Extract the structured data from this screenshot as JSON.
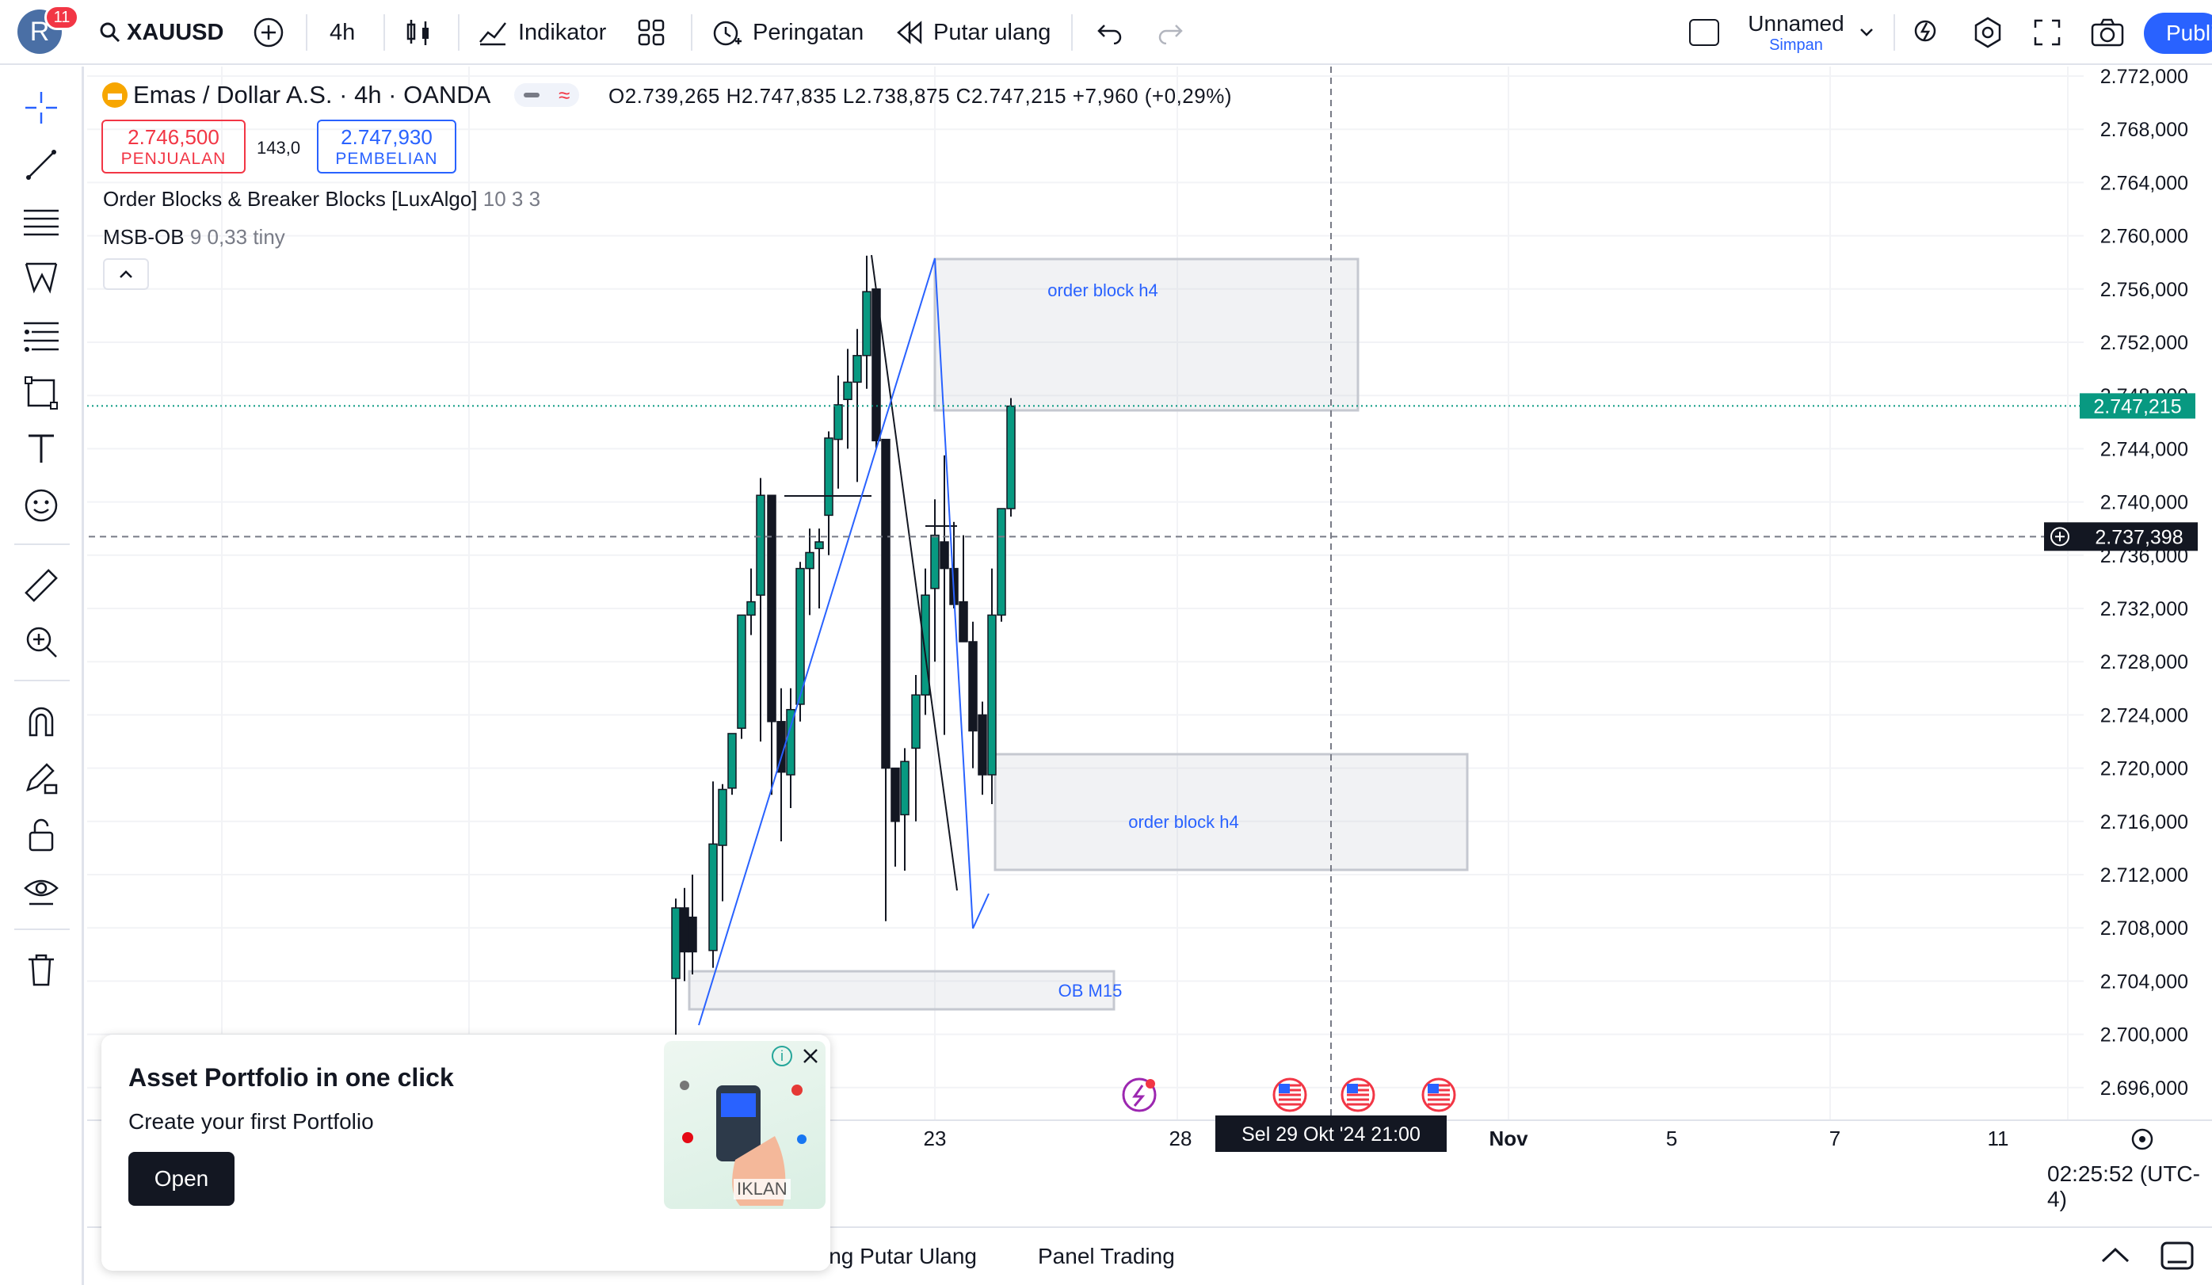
{
  "topbar": {
    "avatar_letter": "R",
    "notif_count": "11",
    "symbol": "XAUUSD",
    "interval": "4h",
    "indicators": "Indikator",
    "alerts": "Peringatan",
    "replay": "Putar ulang",
    "layout_name": "Unnamed",
    "layout_status": "Simpan",
    "publish": "Publi"
  },
  "legend": {
    "title": "Emas / Dollar A.S. · 4h · OANDA",
    "ohlc": "O2.739,265  H2.747,835  L2.738,875  C2.747,215  +7,960 (+0,29%)"
  },
  "sell": {
    "price": "2.746,500",
    "label": "PENJUALAN"
  },
  "spread": "143,0",
  "buy": {
    "price": "2.747,930",
    "label": "PEMBELIAN"
  },
  "indicators": [
    {
      "name": "Order Blocks & Breaker Blocks [LuxAlgo]",
      "params": "10 3 3"
    },
    {
      "name": "MSB-OB",
      "params": "9 0,33 tiny"
    }
  ],
  "price_axis": [
    "2.772,000",
    "2.768,000",
    "2.764,000",
    "2.760,000",
    "2.756,000",
    "2.752,000",
    "2.748,000",
    "2.744,000",
    "2.740,000",
    "2.736,000",
    "2.732,000",
    "2.728,000",
    "2.724,000",
    "2.720,000",
    "2.716,000",
    "2.712,000",
    "2.708,000",
    "2.704,000",
    "2.700,000",
    "2.696,000"
  ],
  "last_price": "2.747,215",
  "crosshair_price": "2.737,398",
  "time_axis": [
    "23",
    "28",
    "Nov",
    "5",
    "7",
    "11"
  ],
  "crosshair_time": "Sel 29 Okt '24   21:00",
  "zones": [
    {
      "label": "order block h4"
    },
    {
      "label": "order block h4"
    },
    {
      "label": "OB M15"
    }
  ],
  "clock": "02:25:52 (UTC-4)",
  "bottom_tabs": [
    "ing Putar Ulang",
    "Panel Trading"
  ],
  "ad": {
    "title": "Asset Portfolio in one click",
    "subtitle": "Create your first Portfolio",
    "button": "Open",
    "tag": "IKLAN"
  },
  "colors": {
    "up": "#089981",
    "down": "#131722",
    "accent": "#2962ff",
    "sell": "#f23645",
    "last_price": "#089981"
  }
}
